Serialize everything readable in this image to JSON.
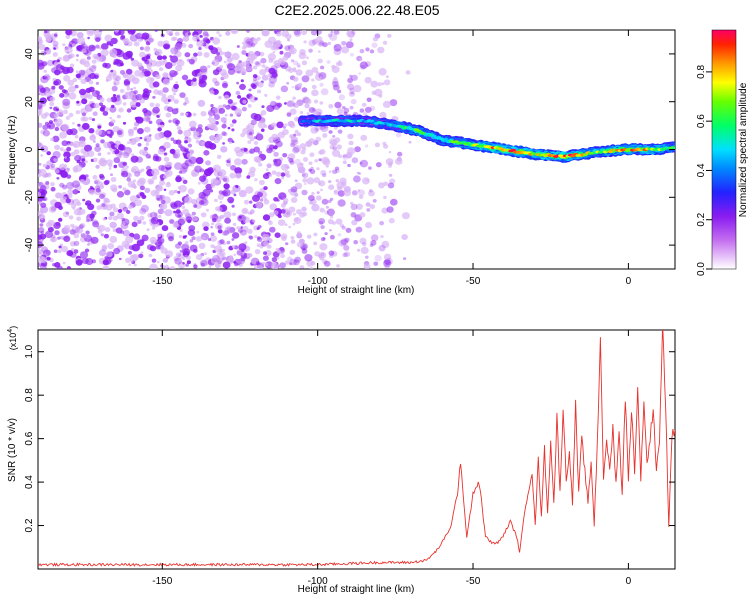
{
  "title": "C2E2.2025.006.22.48.E05",
  "colors": {
    "scatter": "#8a1cf0",
    "line": "#e8322d",
    "axis": "#000000"
  },
  "chart_data": [
    {
      "type": "heatmap",
      "xlabel": "Height of straight line (km)",
      "ylabel": "Frequency (Hz)",
      "xlim": [
        -190,
        15
      ],
      "ylim": [
        -50,
        50
      ],
      "xticks": [
        -150,
        -100,
        -50,
        0
      ],
      "yticks": [
        -40,
        -20,
        0,
        20,
        40
      ],
      "colorbar": {
        "label": "Normalized spectral amplitude",
        "range": [
          0,
          0.97
        ],
        "ticks": [
          0.0,
          0.2,
          0.4,
          0.6,
          0.8
        ]
      },
      "noise_region_x": [
        -190,
        -70
      ],
      "dense_noise_x": [
        -190,
        -110
      ],
      "ridge": {
        "x": [
          -105,
          -95,
          -85,
          -75,
          -68,
          -60,
          -50,
          -40,
          -30,
          -20,
          -10,
          0,
          10,
          15
        ],
        "freq_hz": [
          12,
          12,
          12,
          10,
          8,
          4,
          2,
          0,
          -2,
          -3,
          -1,
          0,
          0,
          1
        ],
        "amplitude": [
          0.45,
          0.55,
          0.5,
          0.55,
          0.7,
          0.6,
          0.75,
          0.95,
          0.85,
          0.95,
          0.7,
          0.9,
          0.8,
          0.6
        ]
      }
    },
    {
      "type": "line",
      "xlabel": "Height of straight line (km)",
      "ylabel": "SNR (10 * v/v)",
      "y_multiplier": "(x10",
      "y_multiplier_exp": "4",
      "y_multiplier_close": ")",
      "xlim": [
        -190,
        15
      ],
      "ylim": [
        0,
        1.1
      ],
      "xticks": [
        -150,
        -100,
        -50,
        0
      ],
      "yticks": [
        0.2,
        0.4,
        0.6,
        0.8,
        1.0
      ],
      "series": [
        {
          "x": [
            -190,
            -180,
            -170,
            -160,
            -150,
            -140,
            -130,
            -120,
            -110,
            -100,
            -90,
            -80,
            -70,
            -65,
            -62,
            -60,
            -57,
            -55,
            -54,
            -53,
            -52,
            -50,
            -48,
            -46,
            -44,
            -42,
            -40,
            -38,
            -36,
            -35,
            -33,
            -31,
            -30,
            -29,
            -28,
            -27,
            -26,
            -25,
            -24,
            -23,
            -22,
            -21,
            -20,
            -19,
            -18,
            -17,
            -16,
            -15,
            -14,
            -13,
            -12,
            -11,
            -10,
            -9,
            -8,
            -7,
            -6,
            -5,
            -4,
            -3,
            -2,
            -1,
            0,
            1,
            2,
            3,
            4,
            5,
            6,
            7,
            8,
            9,
            10,
            11,
            12,
            13,
            14,
            15
          ],
          "y": [
            0.02,
            0.02,
            0.02,
            0.02,
            0.02,
            0.02,
            0.02,
            0.02,
            0.02,
            0.02,
            0.025,
            0.03,
            0.03,
            0.04,
            0.08,
            0.12,
            0.2,
            0.35,
            0.5,
            0.3,
            0.15,
            0.35,
            0.4,
            0.15,
            0.12,
            0.12,
            0.16,
            0.22,
            0.15,
            0.08,
            0.3,
            0.45,
            0.2,
            0.5,
            0.25,
            0.55,
            0.25,
            0.6,
            0.3,
            0.7,
            0.35,
            0.75,
            0.4,
            0.55,
            0.3,
            0.75,
            0.35,
            0.6,
            0.45,
            0.3,
            0.5,
            0.2,
            0.58,
            1.08,
            0.4,
            0.6,
            0.45,
            0.65,
            0.4,
            0.62,
            0.35,
            0.8,
            0.4,
            0.75,
            0.45,
            0.82,
            0.42,
            0.78,
            0.48,
            0.6,
            0.75,
            0.45,
            0.6,
            1.1,
            0.75,
            0.2,
            0.62,
            0.64
          ]
        }
      ]
    }
  ]
}
